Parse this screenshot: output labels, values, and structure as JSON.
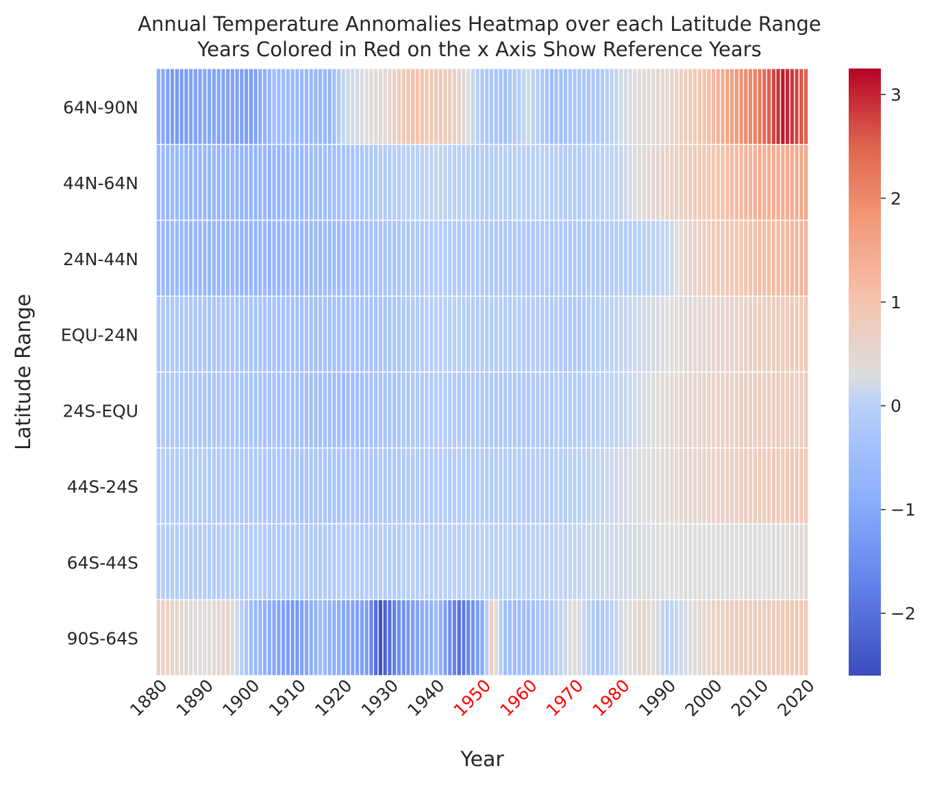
{
  "chart_data": {
    "type": "heatmap",
    "title_line1": "Annual Temperature Annomalies Heatmap over each Latitude Range",
    "title_line2": "Years Colored in Red on the x Axis Show Reference Years",
    "xlabel": "Year",
    "ylabel": "Latitude Range",
    "rows": [
      "64N-90N",
      "44N-64N",
      "24N-44N",
      "EQU-24N",
      "24S-EQU",
      "44S-24S",
      "64S-44S",
      "90S-64S"
    ],
    "year_start": 1880,
    "year_end": 2020,
    "x_tick_labels": [
      "1880",
      "1890",
      "1900",
      "1910",
      "1920",
      "1930",
      "1940",
      "1950",
      "1960",
      "1970",
      "1980",
      "1990",
      "2000",
      "2010",
      "2020"
    ],
    "reference_years": [
      "1950",
      "1960",
      "1970",
      "1980"
    ],
    "reference_year_color": "#ff0000",
    "colorbar": {
      "vmin": -2.6,
      "vmax": 3.25,
      "tick_labels": [
        "−2",
        "−1",
        "0",
        "1",
        "2",
        "3"
      ],
      "tick_values": [
        -2,
        -1,
        0,
        1,
        2,
        3
      ],
      "colormap": "coolwarm",
      "center_value": 0.3
    },
    "series_anchors": [
      {
        "name": "64N-90N",
        "points": [
          [
            1880,
            -0.9
          ],
          [
            1884,
            -1.3
          ],
          [
            1890,
            -1.0
          ],
          [
            1900,
            -1.2
          ],
          [
            1905,
            -0.5
          ],
          [
            1912,
            -0.6
          ],
          [
            1917,
            -0.7
          ],
          [
            1920,
            0.1
          ],
          [
            1925,
            0.3
          ],
          [
            1930,
            0.5
          ],
          [
            1935,
            1.1
          ],
          [
            1938,
            0.9
          ],
          [
            1942,
            0.8
          ],
          [
            1945,
            0.6
          ],
          [
            1950,
            -0.2
          ],
          [
            1955,
            -0.4
          ],
          [
            1960,
            0.2
          ],
          [
            1965,
            -0.5
          ],
          [
            1970,
            -0.3
          ],
          [
            1975,
            -0.2
          ],
          [
            1980,
            0.2
          ],
          [
            1985,
            0.4
          ],
          [
            1990,
            0.5
          ],
          [
            1995,
            0.8
          ],
          [
            2000,
            1.2
          ],
          [
            2005,
            1.8
          ],
          [
            2010,
            2.2
          ],
          [
            2015,
            3.1
          ],
          [
            2020,
            2.5
          ]
        ]
      },
      {
        "name": "44N-64N",
        "points": [
          [
            1880,
            -0.6
          ],
          [
            1900,
            -0.7
          ],
          [
            1910,
            -0.6
          ],
          [
            1920,
            -0.4
          ],
          [
            1930,
            -0.1
          ],
          [
            1940,
            0.1
          ],
          [
            1950,
            -0.1
          ],
          [
            1960,
            0.0
          ],
          [
            1970,
            -0.1
          ],
          [
            1980,
            0.1
          ],
          [
            1985,
            0.4
          ],
          [
            1990,
            0.6
          ],
          [
            2000,
            1.0
          ],
          [
            2010,
            1.4
          ],
          [
            2020,
            1.5
          ]
        ]
      },
      {
        "name": "24N-44N",
        "points": [
          [
            1880,
            -0.6
          ],
          [
            1900,
            -0.7
          ],
          [
            1910,
            -0.6
          ],
          [
            1920,
            -0.5
          ],
          [
            1930,
            -0.3
          ],
          [
            1940,
            -0.1
          ],
          [
            1950,
            -0.2
          ],
          [
            1960,
            -0.2
          ],
          [
            1970,
            -0.2
          ],
          [
            1980,
            -0.1
          ],
          [
            1990,
            0.1
          ],
          [
            1995,
            0.6
          ],
          [
            2000,
            0.8
          ],
          [
            2010,
            1.1
          ],
          [
            2020,
            1.3
          ]
        ]
      },
      {
        "name": "EQU-24N",
        "points": [
          [
            1880,
            -0.2
          ],
          [
            1900,
            -0.3
          ],
          [
            1910,
            -0.4
          ],
          [
            1920,
            -0.4
          ],
          [
            1930,
            -0.3
          ],
          [
            1940,
            0.0
          ],
          [
            1950,
            -0.1
          ],
          [
            1960,
            -0.1
          ],
          [
            1970,
            -0.2
          ],
          [
            1980,
            0.1
          ],
          [
            1990,
            0.3
          ],
          [
            2000,
            0.5
          ],
          [
            2010,
            0.7
          ],
          [
            2020,
            0.9
          ]
        ]
      },
      {
        "name": "24S-EQU",
        "points": [
          [
            1880,
            -0.2
          ],
          [
            1900,
            -0.3
          ],
          [
            1910,
            -0.4
          ],
          [
            1920,
            -0.5
          ],
          [
            1930,
            -0.3
          ],
          [
            1940,
            -0.1
          ],
          [
            1950,
            -0.2
          ],
          [
            1960,
            -0.2
          ],
          [
            1970,
            -0.1
          ],
          [
            1980,
            0.1
          ],
          [
            1990,
            0.4
          ],
          [
            2000,
            0.6
          ],
          [
            2010,
            0.7
          ],
          [
            2020,
            0.8
          ]
        ]
      },
      {
        "name": "44S-24S",
        "points": [
          [
            1880,
            -0.1
          ],
          [
            1900,
            -0.2
          ],
          [
            1910,
            -0.3
          ],
          [
            1920,
            -0.3
          ],
          [
            1930,
            -0.2
          ],
          [
            1940,
            -0.1
          ],
          [
            1950,
            -0.1
          ],
          [
            1960,
            -0.1
          ],
          [
            1970,
            0.0
          ],
          [
            1980,
            0.2
          ],
          [
            1990,
            0.4
          ],
          [
            2000,
            0.6
          ],
          [
            2010,
            0.8
          ],
          [
            2020,
            0.9
          ]
        ]
      },
      {
        "name": "64S-44S",
        "points": [
          [
            1880,
            -0.1
          ],
          [
            1900,
            -0.1
          ],
          [
            1910,
            -0.2
          ],
          [
            1920,
            -0.1
          ],
          [
            1930,
            -0.1
          ],
          [
            1940,
            0.0
          ],
          [
            1950,
            0.0
          ],
          [
            1960,
            0.0
          ],
          [
            1970,
            0.1
          ],
          [
            1980,
            0.2
          ],
          [
            1990,
            0.3
          ],
          [
            2000,
            0.3
          ],
          [
            2010,
            0.3
          ],
          [
            2020,
            0.4
          ]
        ]
      },
      {
        "name": "90S-64S",
        "points": [
          [
            1880,
            0.7
          ],
          [
            1885,
            0.5
          ],
          [
            1890,
            0.3
          ],
          [
            1895,
            0.6
          ],
          [
            1900,
            -0.5
          ],
          [
            1905,
            -1.0
          ],
          [
            1910,
            -1.3
          ],
          [
            1915,
            -0.6
          ],
          [
            1920,
            -1.0
          ],
          [
            1925,
            -1.2
          ],
          [
            1928,
            -2.5
          ],
          [
            1932,
            -1.5
          ],
          [
            1935,
            -1.2
          ],
          [
            1940,
            -0.6
          ],
          [
            1945,
            -2.0
          ],
          [
            1950,
            -1.0
          ],
          [
            1952,
            0.8
          ],
          [
            1955,
            -0.5
          ],
          [
            1960,
            -0.5
          ],
          [
            1965,
            -0.2
          ],
          [
            1970,
            0.4
          ],
          [
            1975,
            -0.3
          ],
          [
            1980,
            0.2
          ],
          [
            1985,
            0.6
          ],
          [
            1990,
            0.0
          ],
          [
            1995,
            0.3
          ],
          [
            2000,
            0.6
          ],
          [
            2005,
            0.8
          ],
          [
            2010,
            0.7
          ],
          [
            2015,
            0.9
          ],
          [
            2020,
            0.9
          ]
        ]
      }
    ]
  }
}
